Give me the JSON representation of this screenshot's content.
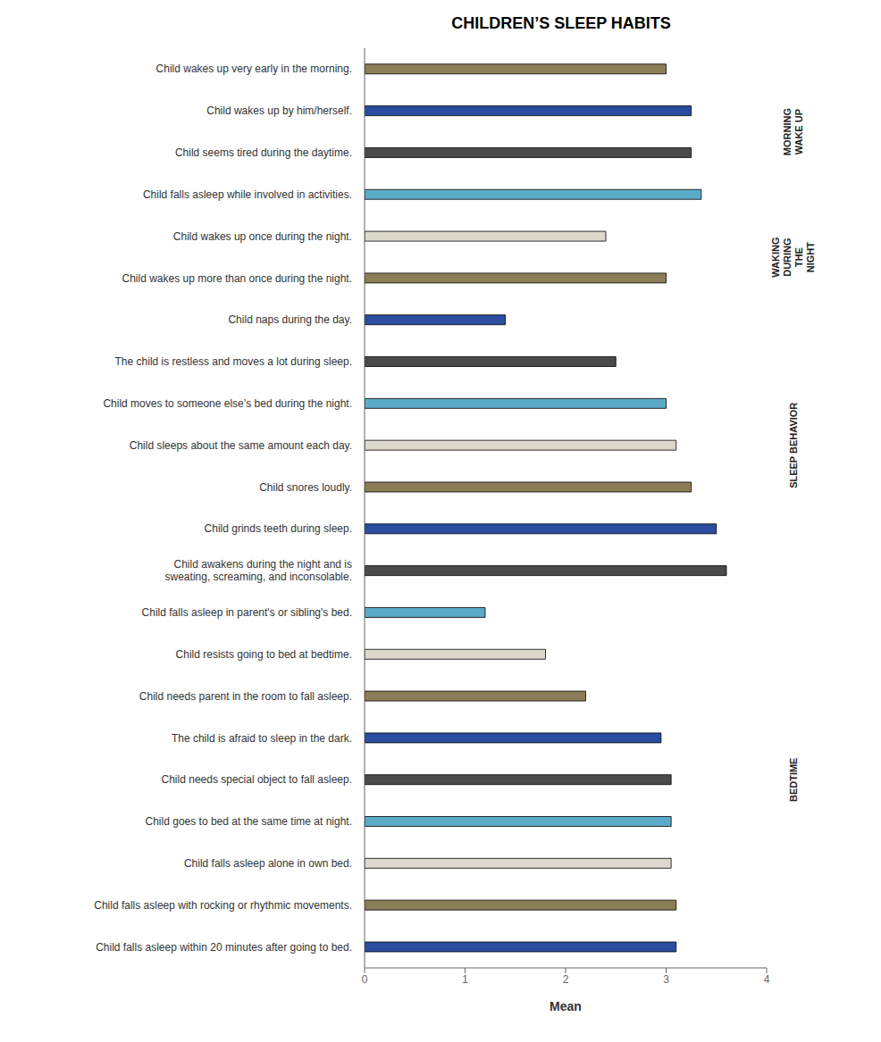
{
  "chart_data": {
    "type": "bar",
    "title": "CHILDREN’S SLEEP HABITS",
    "xlabel": "Mean",
    "orientation": "horizontal",
    "categories": [
      "Child wakes up very early in the morning.",
      "Child wakes up by him/herself.",
      "Child seems tired during the daytime.",
      "Child falls asleep while involved in activities.",
      "Child wakes up once during the night.",
      "Child wakes up more than once during the night.",
      "Child naps during the day.",
      "The child is restless and moves a lot during sleep.",
      "Child moves to someone else’s bed during the night.",
      "Child sleeps about the same amount each day.",
      "Child snores loudly.",
      "Child grinds teeth during sleep.",
      "Child awakens during the night and is\nsweating, screaming, and inconsolable.",
      "Child falls asleep in parent's or sibling's bed.",
      "Child resists going to bed at bedtime.",
      "Child needs parent in the room to fall asleep.",
      "The child is afraid to sleep in the dark.",
      "Child needs special object to fall asleep.",
      "Child goes to bed at the same time at night.",
      "Child falls asleep alone in own bed.",
      "Child falls asleep with rocking or rhythmic movements.",
      "Child falls asleep within 20 minutes after going to bed."
    ],
    "values": [
      3.0,
      3.25,
      3.25,
      3.35,
      2.4,
      3.0,
      1.4,
      2.5,
      3.0,
      3.1,
      3.25,
      3.5,
      3.6,
      1.2,
      1.8,
      2.2,
      2.95,
      3.05,
      3.05,
      3.05,
      3.1,
      3.1
    ],
    "colors": [
      "#8B7D55",
      "#2B4DA0",
      "#4A4A4A",
      "#5BAAC8",
      "#DDD8CC",
      "#8B7D55",
      "#2B4DA0",
      "#4A4A4A",
      "#5BAAC8",
      "#DDD8CC",
      "#8B7D55",
      "#2B4DA0",
      "#4A4A4A",
      "#5BAAC8",
      "#DDD8CC",
      "#8B7D55",
      "#2B4DA0",
      "#4A4A4A",
      "#5BAAC8",
      "#DDD8CC",
      "#8B7D55",
      "#2B4DA0"
    ],
    "xlim": [
      0,
      4
    ],
    "xticks": [
      0,
      1,
      2,
      3,
      4
    ],
    "grid": false,
    "annotations": [
      {
        "text": "MORNING\nWAKE UP",
        "from": "Child wakes up very early in the morning.",
        "to": "Child falls asleep while involved in activities."
      },
      {
        "text": "WAKING\nDURING\nTHE\nNIGHT",
        "from": "Child wakes up once during the night.",
        "to": "Child wakes up more than once during the night."
      },
      {
        "text": "SLEEP BEHAVIOR",
        "from": "Child naps during the day.",
        "to": "Child awakens during the night and is\nsweating, screaming, and inconsolable."
      },
      {
        "text": "BEDTIME",
        "from": "Child falls asleep in parent's or sibling's bed.",
        "to": "Child falls asleep within 20 minutes after going to bed."
      }
    ]
  }
}
